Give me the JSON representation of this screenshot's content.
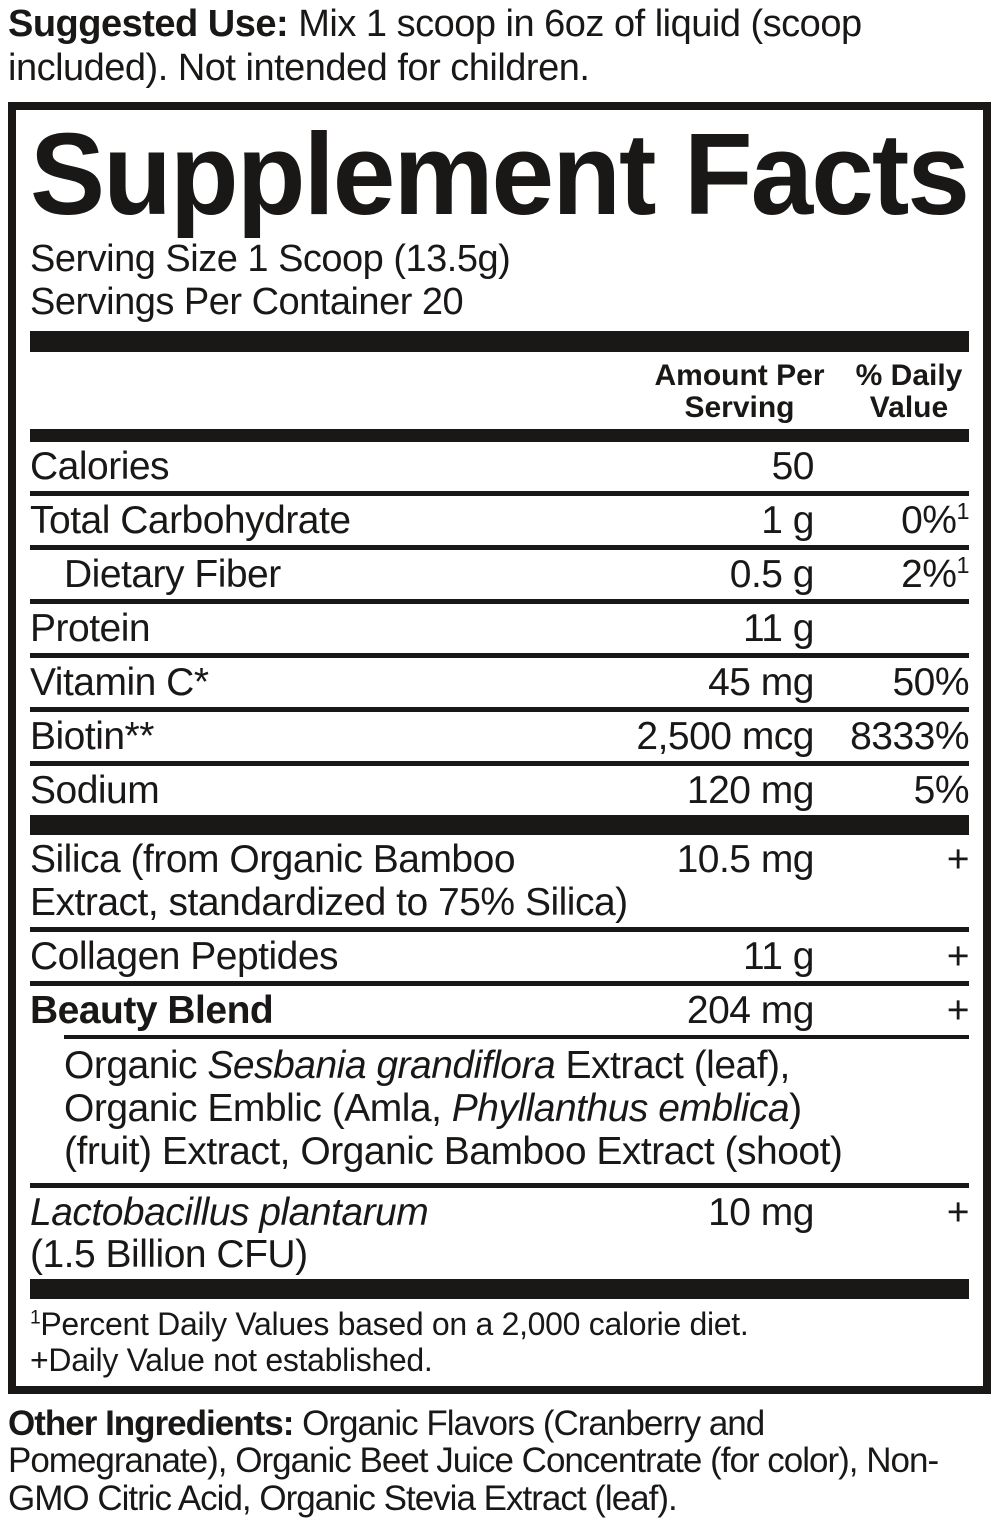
{
  "colors": {
    "ink": "#1a1817",
    "background": "#ffffff"
  },
  "suggested_use": {
    "label": "Suggested Use:",
    "text": " Mix 1 scoop in 6oz of liquid (scoop included). Not intended for children."
  },
  "panel": {
    "title": "Supplement Facts",
    "serving_size": "Serving Size 1 Scoop (13.5g)",
    "servings_per_container": "Servings Per Container 20",
    "columns": {
      "amount": "Amount Per Serving",
      "daily_value": "% Daily Value"
    },
    "rows": [
      {
        "label": "Calories",
        "amount": "50",
        "dv": ""
      },
      {
        "label": "Total Carbohydrate",
        "amount": "1 g",
        "dv": "0%",
        "dv_sup": "1"
      },
      {
        "label": "Dietary Fiber",
        "amount": "0.5 g",
        "dv": "2%",
        "dv_sup": "1"
      },
      {
        "label": "Protein",
        "amount": "11 g",
        "dv": ""
      },
      {
        "label": "Vitamin C*",
        "amount": "45 mg",
        "dv": "50%"
      },
      {
        "label": "Biotin**",
        "amount": "2,500 mcg",
        "dv": "8333%"
      },
      {
        "label": "Sodium",
        "amount": "120 mg",
        "dv": "5%"
      }
    ],
    "silica_row": {
      "label_line1": "Silica (from Organic Bamboo",
      "label_line2": "Extract, standardized to 75% Silica)",
      "amount": "10.5 mg",
      "dv": "+"
    },
    "collagen_row": {
      "label": "Collagen Peptides",
      "amount": "11 g",
      "dv": "+"
    },
    "beauty_blend_row": {
      "label": "Beauty Blend",
      "amount": "204 mg",
      "dv": "+"
    },
    "beauty_blend_ingredients": [
      {
        "pre": "Organic ",
        "italic": "Sesbania grandiflora",
        "post": " Extract (leaf),"
      },
      {
        "pre": "Organic Emblic (Amla, ",
        "italic": "Phyllanthus emblica",
        "post": ")"
      },
      {
        "pre": "(fruit) Extract, Organic Bamboo Extract (shoot)",
        "italic": "",
        "post": ""
      }
    ],
    "probiotic_row": {
      "label_italic": "Lactobacillus plantarum",
      "label_line2": "(1.5 Billion CFU)",
      "amount": "10 mg",
      "dv": "+"
    },
    "footnotes": {
      "dv_sup": "1",
      "dv_text": "Percent Daily Values based on a 2,000 calorie diet.",
      "not_established": "+Daily Value not established."
    }
  },
  "other_ingredients": {
    "label": "Other Ingredients:",
    "text": " Organic Flavors (Cranberry and Pomegranate), Organic Beet Juice Concentrate (for color), Non-GMO Citric Acid, Organic Stevia Extract (leaf)."
  }
}
